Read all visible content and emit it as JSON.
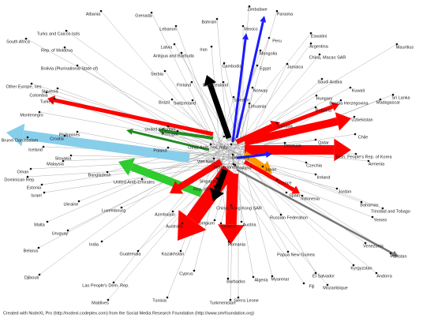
{
  "nodes": [
    {
      "label": "Albania"
    },
    {
      "label": "Grenada"
    },
    {
      "label": "Lebanon"
    },
    {
      "label": "Bahrain"
    },
    {
      "label": "Zimbabwe"
    },
    {
      "label": "Panama"
    },
    {
      "label": "Mexico"
    },
    {
      "label": "Eswatini"
    },
    {
      "label": "Peru"
    },
    {
      "label": "Argentina"
    },
    {
      "label": "Mauritius"
    },
    {
      "label": "Turks and Caicos Isds"
    },
    {
      "label": "South Africa"
    },
    {
      "label": "Latvia"
    },
    {
      "label": "Rep. of Moldova"
    },
    {
      "label": "Iran"
    },
    {
      "label": "Antigua and Barbuda"
    },
    {
      "label": "Mongolia"
    },
    {
      "label": "China, Macao SAR"
    },
    {
      "label": "Jamaica"
    },
    {
      "label": "Cambodia"
    },
    {
      "label": "Egypt"
    },
    {
      "label": "Bolivia (Plurinational State of)"
    },
    {
      "label": "Serbia"
    },
    {
      "label": "Saudi Arabia"
    },
    {
      "label": "Finland"
    },
    {
      "label": "New Zealand"
    },
    {
      "label": "Norway"
    },
    {
      "label": "Kuwait"
    },
    {
      "label": "Sri Lanka"
    },
    {
      "label": "Other Europe, nes"
    },
    {
      "label": "Slovenia"
    },
    {
      "label": "Colombia"
    },
    {
      "label": "Turkey"
    },
    {
      "label": "Brazil"
    },
    {
      "label": "Switzerland"
    },
    {
      "label": "Sweden"
    },
    {
      "label": "Hungary"
    },
    {
      "label": "Madagascar"
    },
    {
      "label": "Bosnia Herzegovina"
    },
    {
      "label": "Lithuania"
    },
    {
      "label": "Montenegro"
    },
    {
      "label": "Bulgaria"
    },
    {
      "label": "Philippines"
    },
    {
      "label": "United Kingdom"
    },
    {
      "label": "Canada"
    },
    {
      "label": "Uzbekistan"
    },
    {
      "label": "Portugal"
    },
    {
      "label": "Brunei Darussalam"
    },
    {
      "label": "Croatia"
    },
    {
      "label": "Denmark"
    },
    {
      "label": "Qatar"
    },
    {
      "label": "Chile"
    },
    {
      "label": "Poland"
    },
    {
      "label": "Other Asia, nes"
    },
    {
      "label": "Italy"
    },
    {
      "label": "USA"
    },
    {
      "label": "Iceland"
    },
    {
      "label": "Slovakia"
    },
    {
      "label": "Germany"
    },
    {
      "label": "Czechia"
    },
    {
      "label": "Armenia"
    },
    {
      "label": "Dem. People's Rep. of Korea"
    },
    {
      "label": "Viet Nam"
    },
    {
      "label": "Netherlands"
    },
    {
      "label": "Thailand"
    },
    {
      "label": "Japan"
    },
    {
      "label": "Malaysia"
    },
    {
      "label": "Oman"
    },
    {
      "label": "Dominican Rep."
    },
    {
      "label": "Bangladesh"
    },
    {
      "label": "Singapore"
    },
    {
      "label": "Rep. of Korea"
    },
    {
      "label": "Estonia"
    },
    {
      "label": "Israel"
    },
    {
      "label": "United Arab Emirates"
    },
    {
      "label": "France"
    },
    {
      "label": "Ireland"
    },
    {
      "label": "Jordan"
    },
    {
      "label": "Luxembourg"
    },
    {
      "label": "Ukraine"
    },
    {
      "label": "Spain"
    },
    {
      "label": "Indonesia"
    },
    {
      "label": "Bahamas"
    },
    {
      "label": "China, Hong Kong SAR"
    },
    {
      "label": "Russian Federation"
    },
    {
      "label": "Trinidad and Tobago"
    },
    {
      "label": "Azerbaijan"
    },
    {
      "label": "Belgium"
    },
    {
      "label": "Austria"
    },
    {
      "label": "Greece"
    },
    {
      "label": "Malta"
    },
    {
      "label": "Uruguay"
    },
    {
      "label": "Australia"
    },
    {
      "label": "Yemen"
    },
    {
      "label": "Belarus"
    },
    {
      "label": "India"
    },
    {
      "label": "Guatemala"
    },
    {
      "label": "Kazakhstan"
    },
    {
      "label": "Romania"
    },
    {
      "label": "Venezuela"
    },
    {
      "label": "Pakistan"
    },
    {
      "label": "Papua New Guinea"
    },
    {
      "label": "Kyrgyzstan"
    },
    {
      "label": "Andorra"
    },
    {
      "label": "Djibouti"
    },
    {
      "label": "Lao People's Dem. Rep."
    },
    {
      "label": "Cyprus"
    },
    {
      "label": "Barbados"
    },
    {
      "label": "Algeria"
    },
    {
      "label": "Myanmar"
    },
    {
      "label": "El Salvador"
    },
    {
      "label": "Mozambique"
    },
    {
      "label": "Fiji"
    },
    {
      "label": "Maldives"
    },
    {
      "label": "Tunisia"
    },
    {
      "label": "Turkmenistan"
    },
    {
      "label": "Sierra Leone"
    }
  ],
  "footer": "Created with NodeXL Pro (http://nodexl.codeplex.com) from the Social Media Research Foundation (http://www.smrfoundation.org)"
}
